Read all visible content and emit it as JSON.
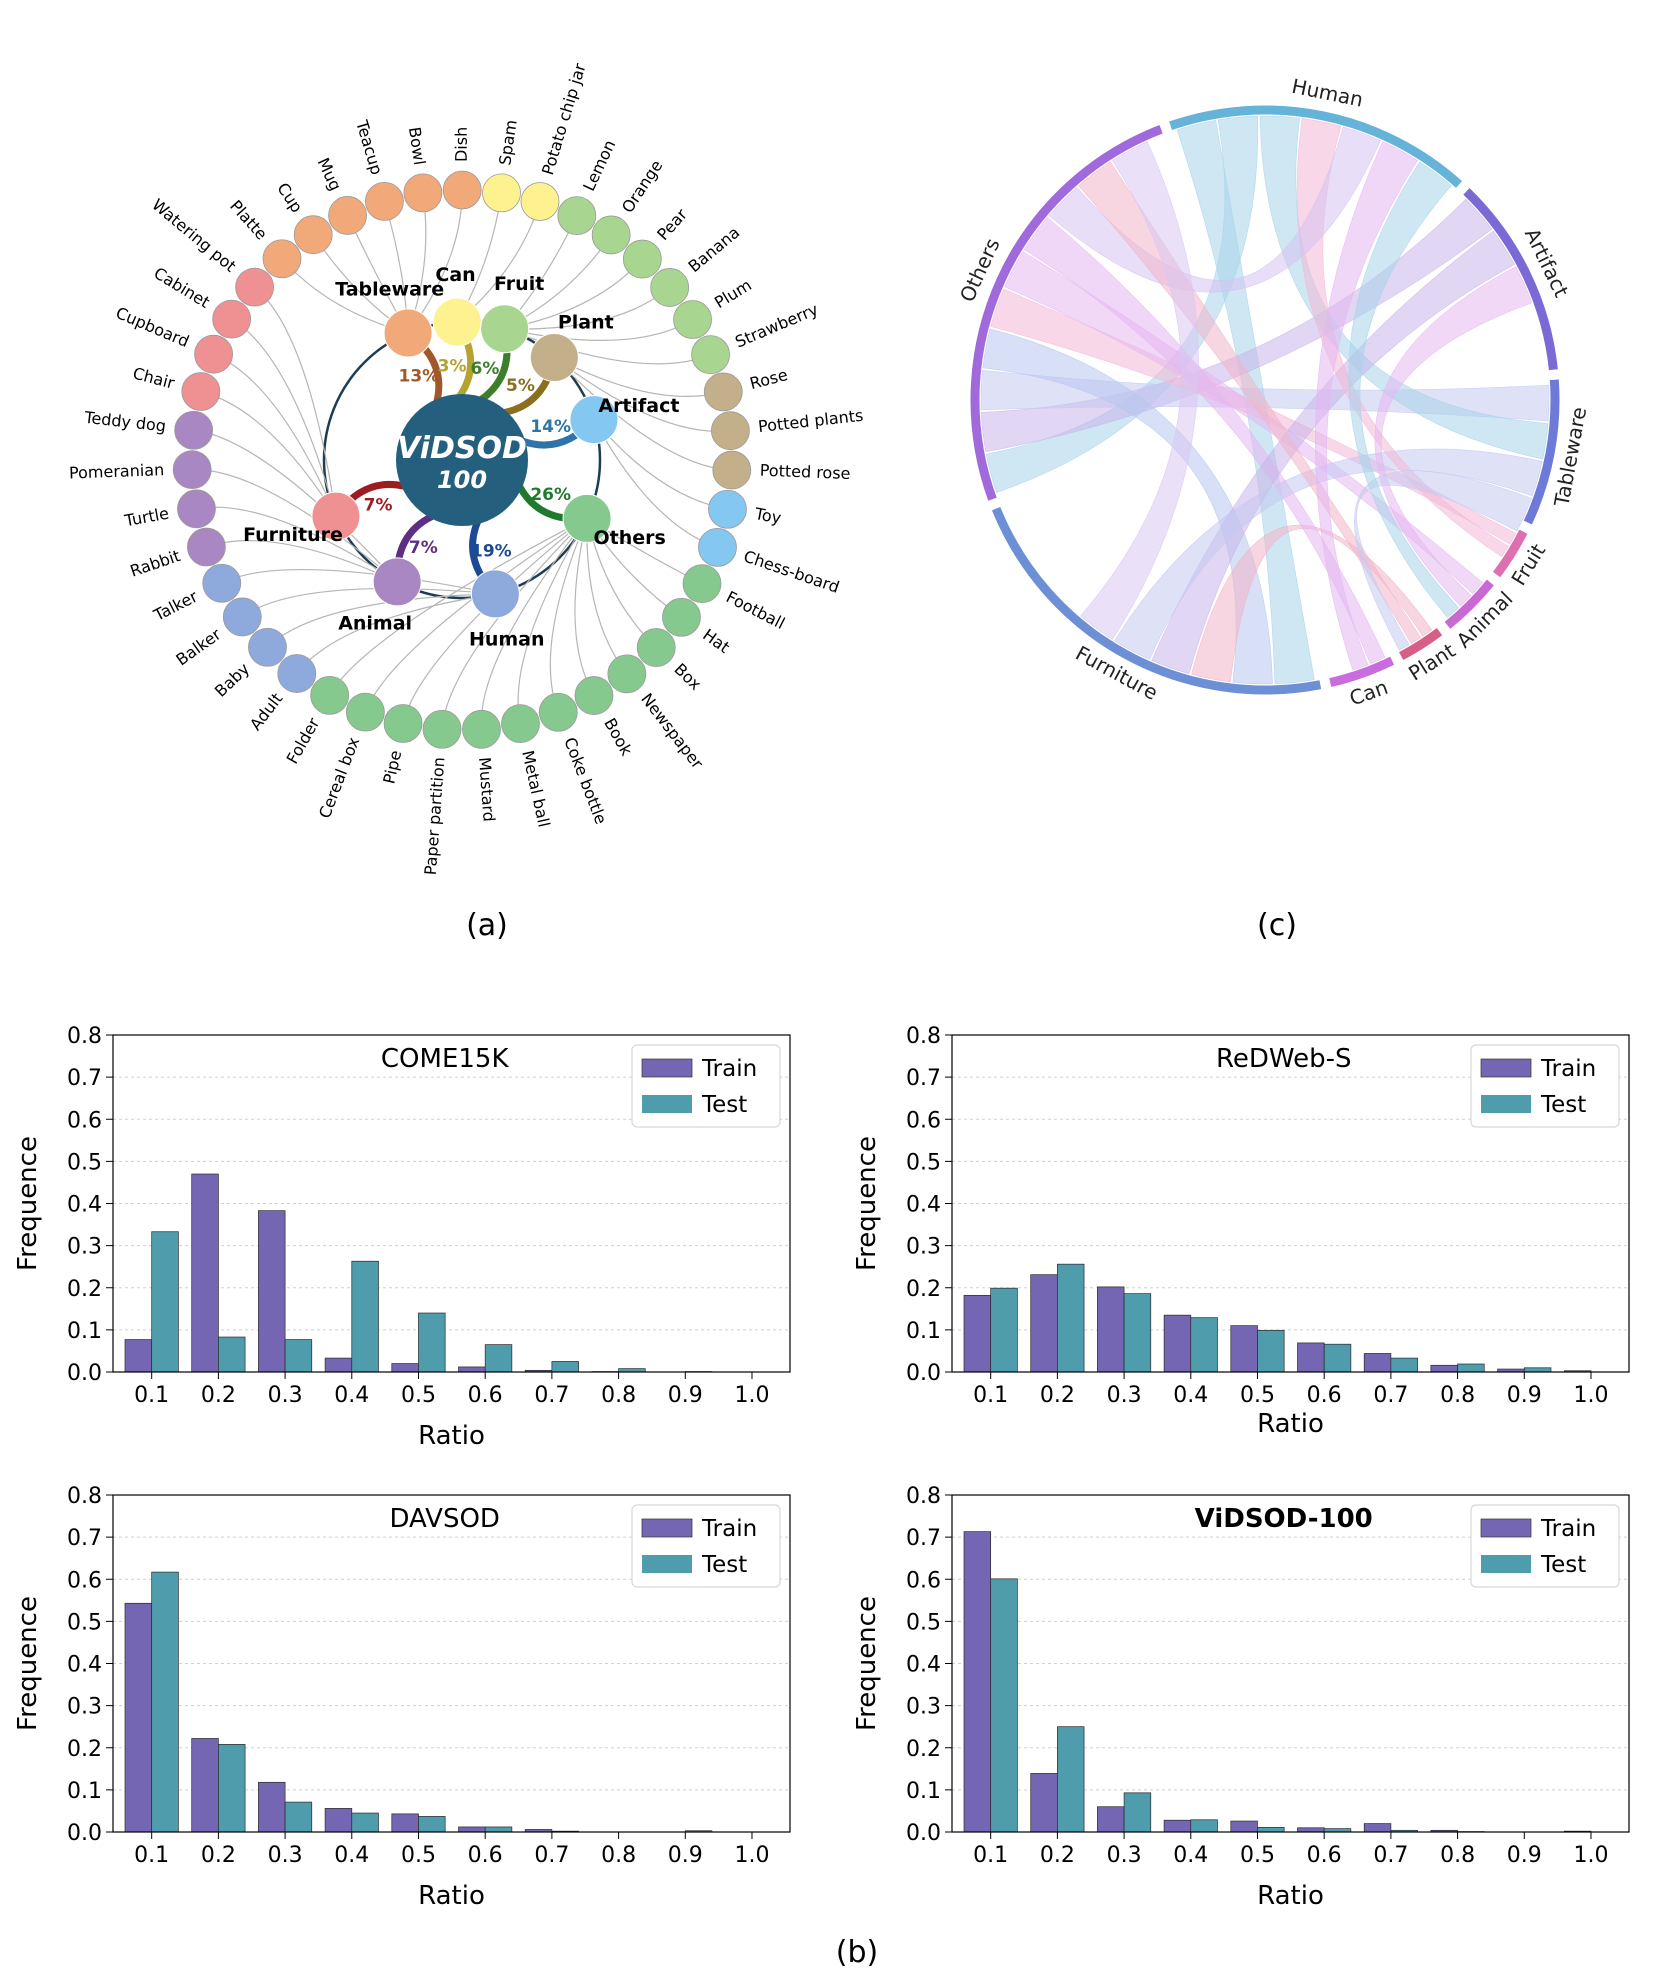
{
  "panel_labels": {
    "a": "(a)",
    "b": "(b)",
    "c": "(c)"
  },
  "colors": {
    "train": "#7566b4",
    "test": "#4f9cac",
    "Tableware": "#f2a979",
    "Can": "#fdf28f",
    "Fruit": "#a8d590",
    "Plant": "#c3b08a",
    "Artifact": "#84c8f2",
    "Others": "#86c98f",
    "Human": "#8eaadc",
    "Animal": "#a887c2",
    "Furniture": "#ef9092",
    "hub": "#24607e"
  },
  "sunburst": {
    "hub_title": "ViDSOD",
    "hub_subtitle": "100",
    "categories": [
      {
        "name": "Tableware",
        "pct": "13%",
        "color": "#f2a979",
        "link": "#a0582a",
        "items": [
          "Platte",
          "Cup",
          "Mug",
          "Teacup",
          "Bowl",
          "Dish"
        ]
      },
      {
        "name": "Can",
        "pct": "3%",
        "color": "#fdf28f",
        "link": "#b5a330",
        "items": [
          "Spam",
          "Potato chip jar"
        ]
      },
      {
        "name": "Fruit",
        "pct": "6%",
        "color": "#a8d590",
        "link": "#3e7d2a",
        "items": [
          "Lemon",
          "Orange",
          "Pear",
          "Banana",
          "Plum",
          "Strawberry"
        ]
      },
      {
        "name": "Plant",
        "pct": "5%",
        "color": "#c3b08a",
        "link": "#8a6f1e",
        "items": [
          "Rose",
          "Potted plants",
          "Potted rose"
        ]
      },
      {
        "name": "Artifact",
        "pct": "14%",
        "color": "#84c8f2",
        "link": "#2e74a6",
        "items": [
          "Toy",
          "Chess-board"
        ]
      },
      {
        "name": "Others",
        "pct": "26%",
        "color": "#86c98f",
        "link": "#1f7a2e",
        "items": [
          "Football",
          "Hat",
          "Box",
          "Newspaper",
          "Book",
          "Coke bottle",
          "Metal ball",
          "Mustard",
          "Paper partition",
          "Pipe",
          "Cereal box",
          "Folder"
        ]
      },
      {
        "name": "Human",
        "pct": "19%",
        "color": "#8eaadc",
        "link": "#1d4a94",
        "items": [
          "Adult",
          "Baby",
          "Balker",
          "Talker"
        ]
      },
      {
        "name": "Animal",
        "pct": "7%",
        "color": "#a887c2",
        "link": "#5c2e84",
        "items": [
          "Rabbit",
          "Turtle",
          "Pomeranian",
          "Teddy dog"
        ]
      },
      {
        "name": "Furniture",
        "pct": "7%",
        "color": "#ef9092",
        "link": "#9c1c22",
        "items": [
          "Chair",
          "Cupboard",
          "Cabinet",
          "Watering pot"
        ]
      }
    ]
  },
  "chord": {
    "groups": [
      {
        "name": "Human",
        "color": "#66b3da"
      },
      {
        "name": "Artifact",
        "color": "#7b6ad6"
      },
      {
        "name": "Tableware",
        "color": "#6e7ad8"
      },
      {
        "name": "Fruit",
        "color": "#de6fb0"
      },
      {
        "name": "Animal",
        "color": "#c86ad2"
      },
      {
        "name": "Plant",
        "color": "#d65f86"
      },
      {
        "name": "Can",
        "color": "#c86ce0"
      },
      {
        "name": "Furniture",
        "color": "#6c8fd6"
      },
      {
        "name": "Others",
        "color": "#a06adc"
      }
    ]
  },
  "chart_data": [
    {
      "type": "bar",
      "title": "COME15K",
      "title_bold": false,
      "categories": [
        "0.1",
        "0.2",
        "0.3",
        "0.4",
        "0.5",
        "0.6",
        "0.7",
        "0.8",
        "0.9",
        "1.0"
      ],
      "series": [
        {
          "name": "Train",
          "values": [
            0.077,
            0.47,
            0.383,
            0.033,
            0.02,
            0.012,
            0.004,
            0.001,
            0.0,
            0.0
          ]
        },
        {
          "name": "Test",
          "values": [
            0.333,
            0.083,
            0.077,
            0.263,
            0.14,
            0.065,
            0.025,
            0.008,
            0.001,
            0.0
          ]
        }
      ],
      "xlabel": "Ratio",
      "ylabel": "Frequence",
      "ylim": [
        0,
        0.8
      ],
      "yticks": [
        "0.0",
        "0.1",
        "0.2",
        "0.3",
        "0.4",
        "0.5",
        "0.6",
        "0.7",
        "0.8"
      ],
      "legend": "top-right"
    },
    {
      "type": "bar",
      "title": "ReDWeb-S",
      "title_bold": false,
      "categories": [
        "0.1",
        "0.2",
        "0.3",
        "0.4",
        "0.5",
        "0.6",
        "0.7",
        "0.8",
        "0.9",
        "1.0"
      ],
      "series": [
        {
          "name": "Train",
          "values": [
            0.182,
            0.231,
            0.202,
            0.135,
            0.11,
            0.069,
            0.044,
            0.016,
            0.007,
            0.003
          ]
        },
        {
          "name": "Test",
          "values": [
            0.199,
            0.256,
            0.186,
            0.129,
            0.099,
            0.066,
            0.033,
            0.019,
            0.01,
            0.0
          ]
        }
      ],
      "xlabel": "Ratio",
      "ylabel": "Frequence",
      "ylim": [
        0,
        0.8
      ],
      "yticks": [
        "0.0",
        "0.1",
        "0.2",
        "0.3",
        "0.4",
        "0.5",
        "0.6",
        "0.7",
        "0.8"
      ],
      "legend": "top-right"
    },
    {
      "type": "bar",
      "title": "DAVSOD",
      "title_bold": false,
      "categories": [
        "0.1",
        "0.2",
        "0.3",
        "0.4",
        "0.5",
        "0.6",
        "0.7",
        "0.8",
        "0.9",
        "1.0"
      ],
      "series": [
        {
          "name": "Train",
          "values": [
            0.543,
            0.222,
            0.118,
            0.056,
            0.043,
            0.012,
            0.006,
            0.0,
            0.0,
            0.0
          ]
        },
        {
          "name": "Test",
          "values": [
            0.617,
            0.208,
            0.071,
            0.045,
            0.037,
            0.012,
            0.002,
            0.0,
            0.003,
            0.0
          ]
        }
      ],
      "xlabel": "Ratio",
      "ylabel": "Frequence",
      "ylim": [
        0,
        0.8
      ],
      "yticks": [
        "0.0",
        "0.1",
        "0.2",
        "0.3",
        "0.4",
        "0.5",
        "0.6",
        "0.7",
        "0.8"
      ],
      "legend": "top-right"
    },
    {
      "type": "bar",
      "title": "ViDSOD-100",
      "title_bold": true,
      "categories": [
        "0.1",
        "0.2",
        "0.3",
        "0.4",
        "0.5",
        "0.6",
        "0.7",
        "0.8",
        "0.9",
        "1.0"
      ],
      "series": [
        {
          "name": "Train",
          "values": [
            0.713,
            0.139,
            0.06,
            0.028,
            0.026,
            0.01,
            0.02,
            0.004,
            0.0,
            0.002
          ]
        },
        {
          "name": "Test",
          "values": [
            0.601,
            0.25,
            0.093,
            0.029,
            0.011,
            0.008,
            0.004,
            0.001,
            0.0,
            0.0
          ]
        }
      ],
      "xlabel": "Ratio",
      "ylabel": "Frequence",
      "ylim": [
        0,
        0.8
      ],
      "yticks": [
        "0.0",
        "0.1",
        "0.2",
        "0.3",
        "0.4",
        "0.5",
        "0.6",
        "0.7",
        "0.8"
      ],
      "legend": "top-right"
    }
  ]
}
